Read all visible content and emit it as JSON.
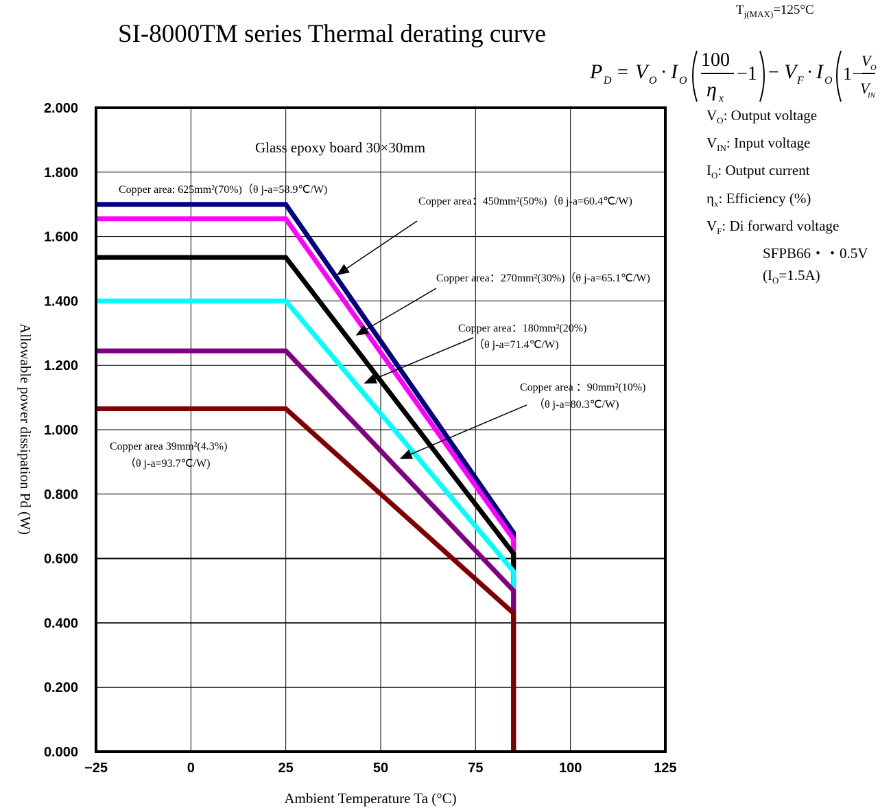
{
  "header": {
    "title": "SI-8000TM series Thermal derating curve",
    "tj_max": "T",
    "tj_max_sub": "j(MAX)",
    "tj_max_val": "=125°C"
  },
  "formula": {
    "pd": "P",
    "pd_sub": "D",
    "vo": "V",
    "vo_sub": "O",
    "io": "I",
    "io_sub": "O",
    "hundred": "100",
    "eta": "η",
    "eta_sub": "x",
    "minus_one": "−1",
    "vf": "V",
    "vf_sub": "F",
    "one_minus": "1−",
    "vin": "V",
    "vin_sub": "IN"
  },
  "legend": {
    "vo_label": "V",
    "vo_sub": "O",
    "vo_text": ": Output voltage",
    "vin_label": "V",
    "vin_sub": "IN",
    "vin_text": ": Input voltage",
    "io_label": "I",
    "io_sub": "O",
    "io_text": ": Output current",
    "eta_label": "η",
    "eta_sub": "x",
    "eta_text": ": Efficiency (%)",
    "vf_label": "V",
    "vf_sub": "F",
    "vf_text": ": Di forward voltage",
    "sfpb": "SFPB66・・0.5V",
    "io_cond_open": "(I",
    "io_cond_sub": "O",
    "io_cond_close": "=1.5A)"
  },
  "annotations": {
    "board": "Glass epoxy board 30×30mm",
    "c625": "Copper area:   625mm²(70%)（θ j-a=58.9℃/W)",
    "c450": "Copper area：450mm²(50%)（θ j-a=60.4℃/W)",
    "c270": "Copper area：270mm²(30%)（θ j-a=65.1℃/W)",
    "c180a": "Copper area：180mm²(20%)",
    "c180b": "（θ j-a=71.4℃/W)",
    "c90a": "Copper area  ：90mm²(10%)",
    "c90b": "（θ j-a=80.3℃/W)",
    "c39a": "Copper area  39mm²(4.3%)",
    "c39b": "（θ j-a=93.7℃/W)"
  },
  "chart_data": {
    "type": "line",
    "title": "SI-8000TM series Thermal derating curve",
    "xlabel": "Ambient Temperature Ta (°C)",
    "ylabel": "Allowable power dissipation Pd (W)",
    "xlim": [
      -25,
      125
    ],
    "ylim": [
      0,
      2.0
    ],
    "x_ticks": [
      "−25",
      "0",
      "25",
      "50",
      "75",
      "100",
      "125"
    ],
    "x_tick_values": [
      -25,
      0,
      25,
      50,
      75,
      100,
      125
    ],
    "y_ticks": [
      "0.000",
      "0.200",
      "0.400",
      "0.600",
      "0.800",
      "1.000",
      "1.200",
      "1.400",
      "1.600",
      "1.800",
      "2.000"
    ],
    "y_tick_values": [
      0,
      0.2,
      0.4,
      0.6,
      0.8,
      1.0,
      1.2,
      1.4,
      1.6,
      1.8,
      2.0
    ],
    "grid": true,
    "series": [
      {
        "color": "#000080",
        "x": [
          -25,
          25,
          85,
          85
        ],
        "y": [
          1.7,
          1.7,
          0.68,
          0
        ]
      },
      {
        "color": "#ff00ff",
        "x": [
          -25,
          25,
          85,
          85
        ],
        "y": [
          1.655,
          1.655,
          0.66,
          0
        ]
      },
      {
        "color": "#000000",
        "x": [
          -25,
          25,
          85,
          85
        ],
        "y": [
          1.535,
          1.535,
          0.615,
          0
        ]
      },
      {
        "color": "#00ffff",
        "x": [
          -25,
          25,
          85,
          85
        ],
        "y": [
          1.4,
          1.4,
          0.56,
          0
        ]
      },
      {
        "color": "#800080",
        "x": [
          -25,
          25,
          85,
          85
        ],
        "y": [
          1.245,
          1.245,
          0.5,
          0
        ]
      },
      {
        "color": "#800000",
        "x": [
          -25,
          25,
          85,
          85
        ],
        "y": [
          1.065,
          1.065,
          0.43,
          0
        ]
      }
    ]
  }
}
